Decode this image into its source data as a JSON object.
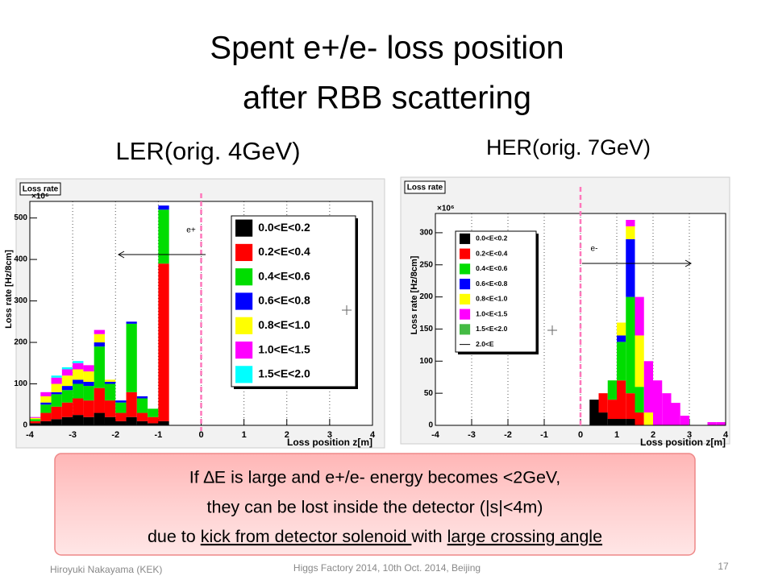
{
  "slide": {
    "title_lines": [
      "Spent e+/e- loss position",
      "after RBB scattering"
    ],
    "note": {
      "line1": "If ∆E is large and e+/e- energy becomes <2GeV,",
      "line2": "they can be lost inside the detector (|s|<4m)",
      "line3a": "due to ",
      "line3b": "kick from detector solenoid ",
      "line3c": "with ",
      "line3d": "large crossing angle"
    },
    "footer_left": "Hiroyuki Nakayama (KEK)",
    "footer_center": "Higgs Factory 2014, 10th Oct. 2014, Beijing",
    "page_number": "17"
  },
  "chart_data": [
    {
      "type": "histogram",
      "title": "LER(orig. 4GeV)",
      "panel_label": "Loss rate",
      "y_multiplier": "×10⁶",
      "xlabel": "Loss position z[m]",
      "ylabel": "Loss rate [Hz/8cm]",
      "annotation": "e+",
      "bins": [
        -4,
        -3.75,
        -3.5,
        -3.25,
        -3,
        -2.75,
        -2.5,
        -2.25,
        -2,
        -1.75,
        -1.5,
        -1.25,
        -1,
        -0.75,
        -0.5,
        -0.25,
        0,
        0.25,
        0.5,
        0.75,
        1,
        1.25,
        1.5,
        1.75,
        2,
        2.25,
        2.5,
        2.75,
        3,
        3.25,
        3.5,
        3.75,
        4
      ],
      "xlim": [
        -4,
        4
      ],
      "xticks": [
        -4,
        -3,
        -2,
        -1,
        0,
        1,
        2,
        3,
        4
      ],
      "ylim": [
        0,
        540
      ],
      "yticks": [
        0,
        100,
        200,
        300,
        400,
        500
      ],
      "grid": "x",
      "series": [
        {
          "name": "0.0<E<0.2",
          "color": "#000000",
          "values": [
            5,
            10,
            15,
            20,
            25,
            20,
            30,
            20,
            10,
            20,
            10,
            5,
            10,
            0,
            0,
            0,
            0,
            0,
            0,
            0,
            0,
            0,
            0,
            0,
            0,
            0,
            0,
            0,
            0,
            0,
            0,
            0
          ]
        },
        {
          "name": "0.2<E<0.4",
          "color": "#ff0000",
          "values": [
            5,
            20,
            30,
            35,
            40,
            40,
            60,
            40,
            20,
            60,
            20,
            15,
            380,
            0,
            0,
            0,
            0,
            0,
            0,
            0,
            0,
            0,
            0,
            0,
            0,
            0,
            0,
            0,
            0,
            0,
            0,
            0
          ]
        },
        {
          "name": "0.4<E<0.6",
          "color": "#00dd00",
          "values": [
            5,
            20,
            30,
            30,
            35,
            35,
            100,
            40,
            25,
            165,
            35,
            20,
            130,
            0,
            0,
            0,
            0,
            0,
            0,
            0,
            0,
            0,
            0,
            0,
            0,
            0,
            0,
            0,
            0,
            0,
            0,
            0
          ]
        },
        {
          "name": "0.6<E<0.8",
          "color": "#0000ff",
          "values": [
            0,
            5,
            5,
            10,
            10,
            10,
            10,
            5,
            5,
            5,
            5,
            0,
            10,
            0,
            0,
            0,
            0,
            0,
            0,
            0,
            0,
            0,
            0,
            0,
            0,
            0,
            0,
            0,
            0,
            0,
            0,
            0
          ]
        },
        {
          "name": "0.8<E<1.0",
          "color": "#ffff00",
          "values": [
            3,
            15,
            20,
            25,
            25,
            25,
            20,
            5,
            0,
            0,
            0,
            0,
            0,
            0,
            0,
            0,
            0,
            0,
            0,
            0,
            0,
            0,
            0,
            0,
            0,
            0,
            0,
            0,
            0,
            0,
            0,
            0
          ]
        },
        {
          "name": "1.0<E<1.5",
          "color": "#ff00ff",
          "values": [
            2,
            10,
            15,
            15,
            15,
            15,
            10,
            0,
            0,
            0,
            0,
            0,
            0,
            0,
            0,
            0,
            0,
            0,
            0,
            0,
            0,
            0,
            0,
            0,
            0,
            0,
            0,
            0,
            0,
            0,
            0,
            0
          ]
        },
        {
          "name": "1.5<E<2.0",
          "color": "#00ffff",
          "values": [
            0,
            0,
            5,
            5,
            5,
            0,
            0,
            0,
            0,
            0,
            0,
            0,
            0,
            0,
            0,
            0,
            0,
            0,
            0,
            0,
            0,
            0,
            0,
            0,
            0,
            0,
            0,
            0,
            0,
            0,
            0,
            0
          ]
        }
      ]
    },
    {
      "type": "histogram",
      "title": "HER(orig. 7GeV)",
      "panel_label": "Loss rate",
      "y_multiplier": "×10⁶",
      "xlabel": "Loss position z[m]",
      "ylabel": "Loss rate [Hz/8cm]",
      "annotation": "e-",
      "bins": [
        -4,
        -3.75,
        -3.5,
        -3.25,
        -3,
        -2.75,
        -2.5,
        -2.25,
        -2,
        -1.75,
        -1.5,
        -1.25,
        -1,
        -0.75,
        -0.5,
        -0.25,
        0,
        0.25,
        0.5,
        0.75,
        1,
        1.25,
        1.5,
        1.75,
        2,
        2.25,
        2.5,
        2.75,
        3,
        3.25,
        3.5,
        3.75,
        4
      ],
      "xlim": [
        -4,
        4
      ],
      "xticks": [
        -4,
        -3,
        -2,
        -1,
        0,
        1,
        2,
        3,
        4
      ],
      "ylim": [
        0,
        330
      ],
      "yticks": [
        0,
        50,
        100,
        150,
        200,
        250,
        300
      ],
      "grid": "x",
      "series": [
        {
          "name": "0.0<E<0.2",
          "color": "#000000",
          "values": [
            0,
            0,
            0,
            0,
            0,
            0,
            0,
            0,
            0,
            0,
            0,
            0,
            0,
            0,
            0,
            0,
            0,
            40,
            20,
            10,
            10,
            10,
            0,
            0,
            0,
            0,
            0,
            0,
            0,
            0,
            0,
            0
          ]
        },
        {
          "name": "0.2<E<0.4",
          "color": "#ff0000",
          "values": [
            0,
            0,
            0,
            0,
            0,
            0,
            0,
            0,
            0,
            0,
            0,
            0,
            0,
            0,
            0,
            0,
            0,
            0,
            30,
            30,
            60,
            40,
            20,
            0,
            0,
            0,
            0,
            0,
            0,
            0,
            0,
            0
          ]
        },
        {
          "name": "0.4<E<0.6",
          "color": "#00dd00",
          "values": [
            0,
            0,
            0,
            0,
            0,
            0,
            0,
            0,
            0,
            0,
            0,
            0,
            0,
            0,
            0,
            0,
            0,
            0,
            0,
            30,
            60,
            150,
            40,
            0,
            0,
            0,
            0,
            0,
            0,
            0,
            0,
            0
          ]
        },
        {
          "name": "0.6<E<0.8",
          "color": "#0000ff",
          "values": [
            0,
            0,
            0,
            0,
            0,
            0,
            0,
            0,
            0,
            0,
            0,
            0,
            0,
            0,
            0,
            0,
            0,
            0,
            0,
            0,
            10,
            90,
            0,
            0,
            0,
            0,
            0,
            0,
            0,
            0,
            0,
            0
          ]
        },
        {
          "name": "0.8<E<1.0",
          "color": "#ffff00",
          "values": [
            0,
            0,
            0,
            0,
            0,
            0,
            0,
            0,
            0,
            0,
            0,
            0,
            0,
            0,
            0,
            0,
            0,
            0,
            0,
            0,
            20,
            20,
            80,
            20,
            0,
            0,
            0,
            0,
            0,
            0,
            0,
            0
          ]
        },
        {
          "name": "1.0<E<1.5",
          "color": "#ff00ff",
          "values": [
            0,
            0,
            0,
            0,
            0,
            0,
            0,
            0,
            0,
            0,
            0,
            0,
            0,
            0,
            0,
            0,
            0,
            0,
            0,
            0,
            0,
            10,
            60,
            80,
            70,
            50,
            35,
            15,
            0,
            0,
            5,
            5
          ]
        },
        {
          "name": "1.5<E<2.0",
          "color": "#44bb44",
          "values": [
            0,
            0,
            0,
            0,
            0,
            0,
            0,
            0,
            0,
            0,
            0,
            0,
            0,
            0,
            0,
            0,
            0,
            0,
            0,
            0,
            0,
            0,
            0,
            0,
            0,
            0,
            0,
            0,
            0,
            0,
            0,
            0
          ]
        },
        {
          "name": "2.0<E",
          "color": "#000000",
          "style": "line",
          "values": [
            0,
            0,
            0,
            0,
            0,
            0,
            0,
            0,
            0,
            0,
            0,
            0,
            0,
            0,
            0,
            0,
            0,
            0,
            0,
            0,
            0,
            0,
            0,
            0,
            0,
            0,
            0,
            0,
            0,
            0,
            0,
            0
          ]
        }
      ]
    }
  ]
}
